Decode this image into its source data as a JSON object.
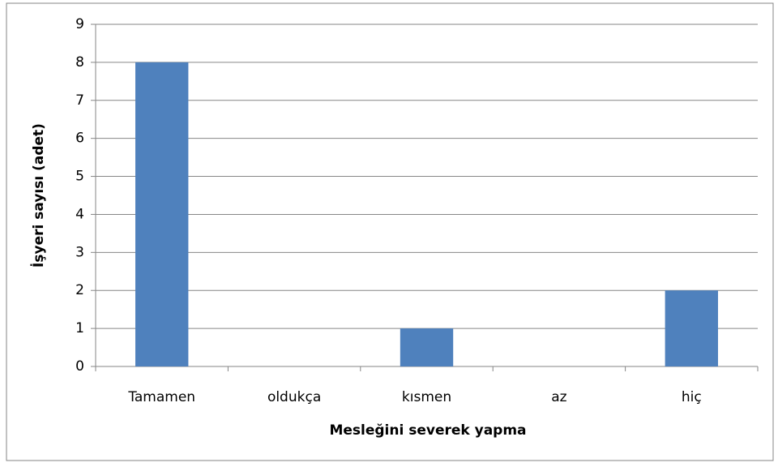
{
  "chart_data": {
    "type": "bar",
    "x_label": "Mesleğini severek yapma",
    "y_label": "İşyeri sayısı (adet)",
    "categories": [
      "Tamamen",
      "oldukça",
      "kısmen",
      "az",
      "hiç"
    ],
    "values": [
      8,
      0,
      1,
      0,
      2
    ],
    "color": "#4f81bd",
    "ylim": [
      0,
      9
    ],
    "yticks": [
      0,
      1,
      2,
      3,
      4,
      5,
      6,
      7,
      8,
      9
    ],
    "grid": true
  }
}
